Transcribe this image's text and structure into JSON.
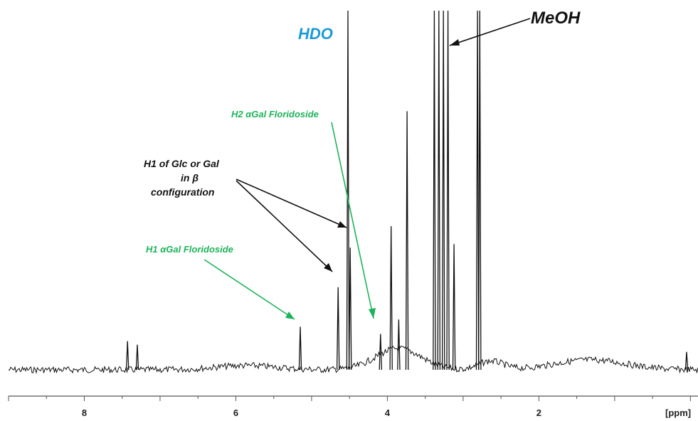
{
  "chart_data": {
    "type": "line",
    "title": "",
    "xlabel": "[ppm]",
    "ylabel": "",
    "x_axis_reversed": true,
    "xlim": [
      9.0,
      -0.1
    ],
    "x_ticks": [
      8,
      6,
      4,
      2
    ],
    "x_tick_labels": [
      "8",
      "6",
      "4",
      "2"
    ],
    "grid": false,
    "y_axis_visible": false,
    "spectrum_type": "1H NMR",
    "series": [
      {
        "color": "#111111",
        "peaks": [
          {
            "ppm": 7.43,
            "height": 0.08
          },
          {
            "ppm": 7.3,
            "height": 0.07
          },
          {
            "ppm": 5.15,
            "height": 0.12
          },
          {
            "ppm": 4.65,
            "height": 0.23
          },
          {
            "ppm": 4.52,
            "height": 1.05
          },
          {
            "ppm": 4.49,
            "height": 0.34
          },
          {
            "ppm": 4.09,
            "height": 0.1
          },
          {
            "ppm": 3.95,
            "height": 0.4
          },
          {
            "ppm": 3.85,
            "height": 0.14
          },
          {
            "ppm": 3.74,
            "height": 0.72
          },
          {
            "ppm": 3.38,
            "height": 1.05
          },
          {
            "ppm": 3.32,
            "height": 1.05
          },
          {
            "ppm": 3.26,
            "height": 1.05
          },
          {
            "ppm": 3.2,
            "height": 1.05
          },
          {
            "ppm": 3.12,
            "height": 0.35
          },
          {
            "ppm": 2.81,
            "height": 1.05
          },
          {
            "ppm": 2.78,
            "height": 1.05
          },
          {
            "ppm": 0.05,
            "height": 0.05
          }
        ]
      }
    ],
    "annotations": [
      {
        "text": "HDO",
        "color": "#1a9ad6",
        "ppm": 4.52
      },
      {
        "text": "MeOH",
        "color": "#111111",
        "ppm": 3.2
      },
      {
        "text": "H2 αGal Floridoside",
        "color": "#1db35a",
        "ppm": 4.09
      },
      {
        "text": "H1 of Glc or Gal",
        "color": "#111111",
        "ppm": 4.6
      },
      {
        "text": "in β",
        "color": "#111111",
        "ppm": 4.6
      },
      {
        "text": "configuration",
        "color": "#111111",
        "ppm": 4.6
      },
      {
        "text": "H1 αGal Floridoside",
        "color": "#1db35a",
        "ppm": 5.15
      }
    ]
  }
}
